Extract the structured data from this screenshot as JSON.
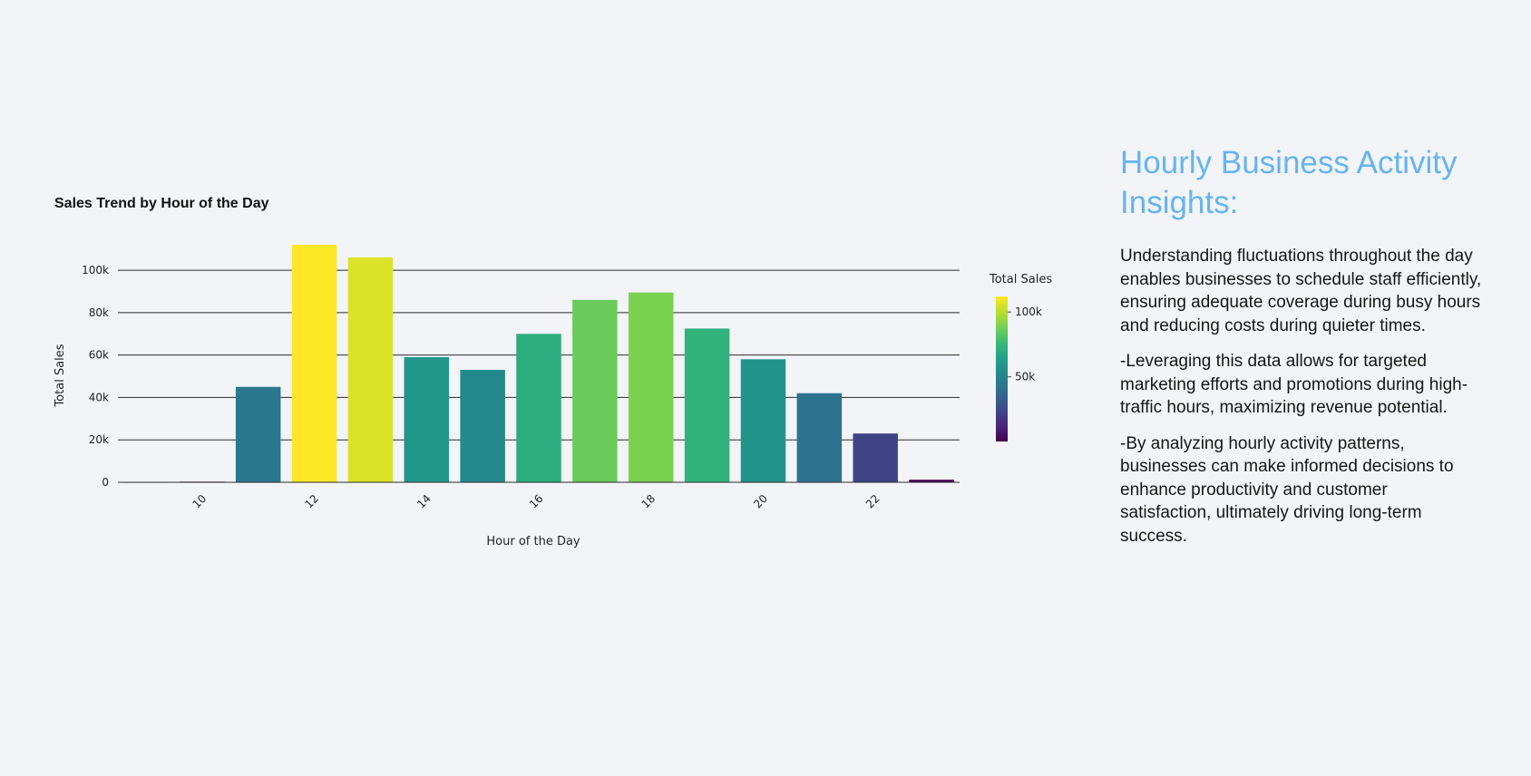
{
  "chart_data": {
    "type": "bar",
    "title": "Sales Trend by Hour of the Day",
    "xlabel": "Hour of the Day",
    "ylabel": "Total Sales",
    "x": [
      9,
      10,
      11,
      12,
      13,
      14,
      15,
      16,
      17,
      18,
      19,
      20,
      21,
      22,
      23
    ],
    "values": [
      200,
      300,
      45000,
      112000,
      106000,
      59000,
      53000,
      70000,
      86000,
      89500,
      72500,
      58000,
      42000,
      23000,
      1200
    ],
    "xticks": [
      10,
      12,
      14,
      16,
      18,
      20,
      22
    ],
    "xtick_labels": [
      "10",
      "12",
      "14",
      "16",
      "18",
      "20",
      "22"
    ],
    "yticks": [
      0,
      20000,
      40000,
      60000,
      80000,
      100000
    ],
    "ytick_labels": [
      "0",
      "20k",
      "40k",
      "60k",
      "80k",
      "100k"
    ],
    "ylim": [
      0,
      112000
    ],
    "grid": "horizontal",
    "colorbar": {
      "title": "Total Sales",
      "colorscale": "viridis",
      "range": [
        200,
        112000
      ],
      "ticks": [
        50000,
        100000
      ],
      "tick_labels": [
        "50k",
        "100k"
      ]
    }
  },
  "insights": {
    "title": "Hourly Business Activity Insights:",
    "paragraphs": [
      "Understanding fluctuations throughout the day enables businesses to schedule staff efficiently, ensuring adequate coverage during busy hours and reducing costs during quieter times.",
      "-Leveraging this data allows for targeted marketing efforts and promotions during high-traffic hours, maximizing revenue potential.",
      "-By analyzing hourly activity patterns, businesses can make informed decisions to enhance productivity and customer satisfaction, ultimately driving long-term success."
    ]
  }
}
